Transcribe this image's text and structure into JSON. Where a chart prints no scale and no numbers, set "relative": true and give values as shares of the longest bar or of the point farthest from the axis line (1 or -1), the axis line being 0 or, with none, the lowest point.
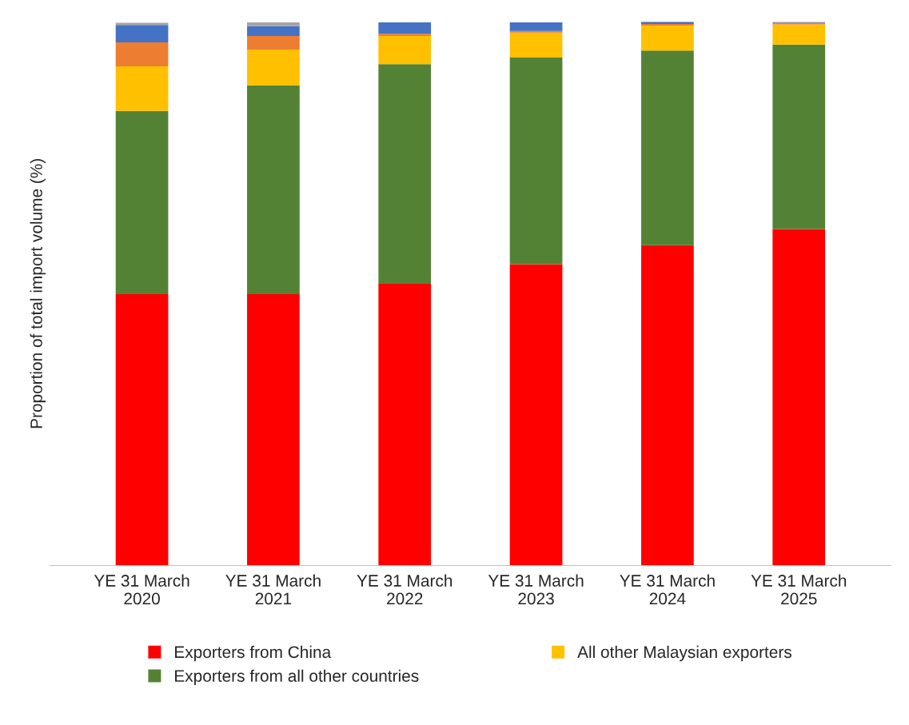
{
  "chart_data": {
    "type": "bar",
    "stacked": true,
    "relative": true,
    "ylabel": "Proportion of total import volume (%)",
    "legend": "bottom",
    "grid": false,
    "categories": [
      "YE 31 March\n2020",
      "YE 31 March\n2021",
      "YE 31 March\n2022",
      "YE 31 March\n2023",
      "YE 31 March\n2024",
      "YE 31 March\n2025"
    ],
    "series": [
      {
        "name": "Exporters from China",
        "color": "#ff0000",
        "values": [
          0.499,
          0.499,
          0.518,
          0.554,
          0.589,
          0.619
        ]
      },
      {
        "name": "Exporters from all other countries",
        "color": "#548235",
        "values": [
          0.337,
          0.384,
          0.404,
          0.38,
          0.358,
          0.339
        ]
      },
      {
        "name": "All other Malaysian exporters",
        "color": "#ffc000",
        "values": [
          0.082,
          0.066,
          0.052,
          0.046,
          0.046,
          0.037
        ]
      },
      {
        "color": "#ed7d31",
        "values": [
          0.044,
          0.025,
          0.004,
          0.003,
          0.003,
          0.003
        ]
      },
      {
        "color": "#4472c4",
        "values": [
          0.032,
          0.018,
          0.021,
          0.016,
          0.004,
          0.001
        ]
      },
      {
        "color": "#a5a5a5",
        "values": [
          0.004,
          0.007,
          null,
          null,
          null,
          0.001
        ]
      }
    ]
  }
}
